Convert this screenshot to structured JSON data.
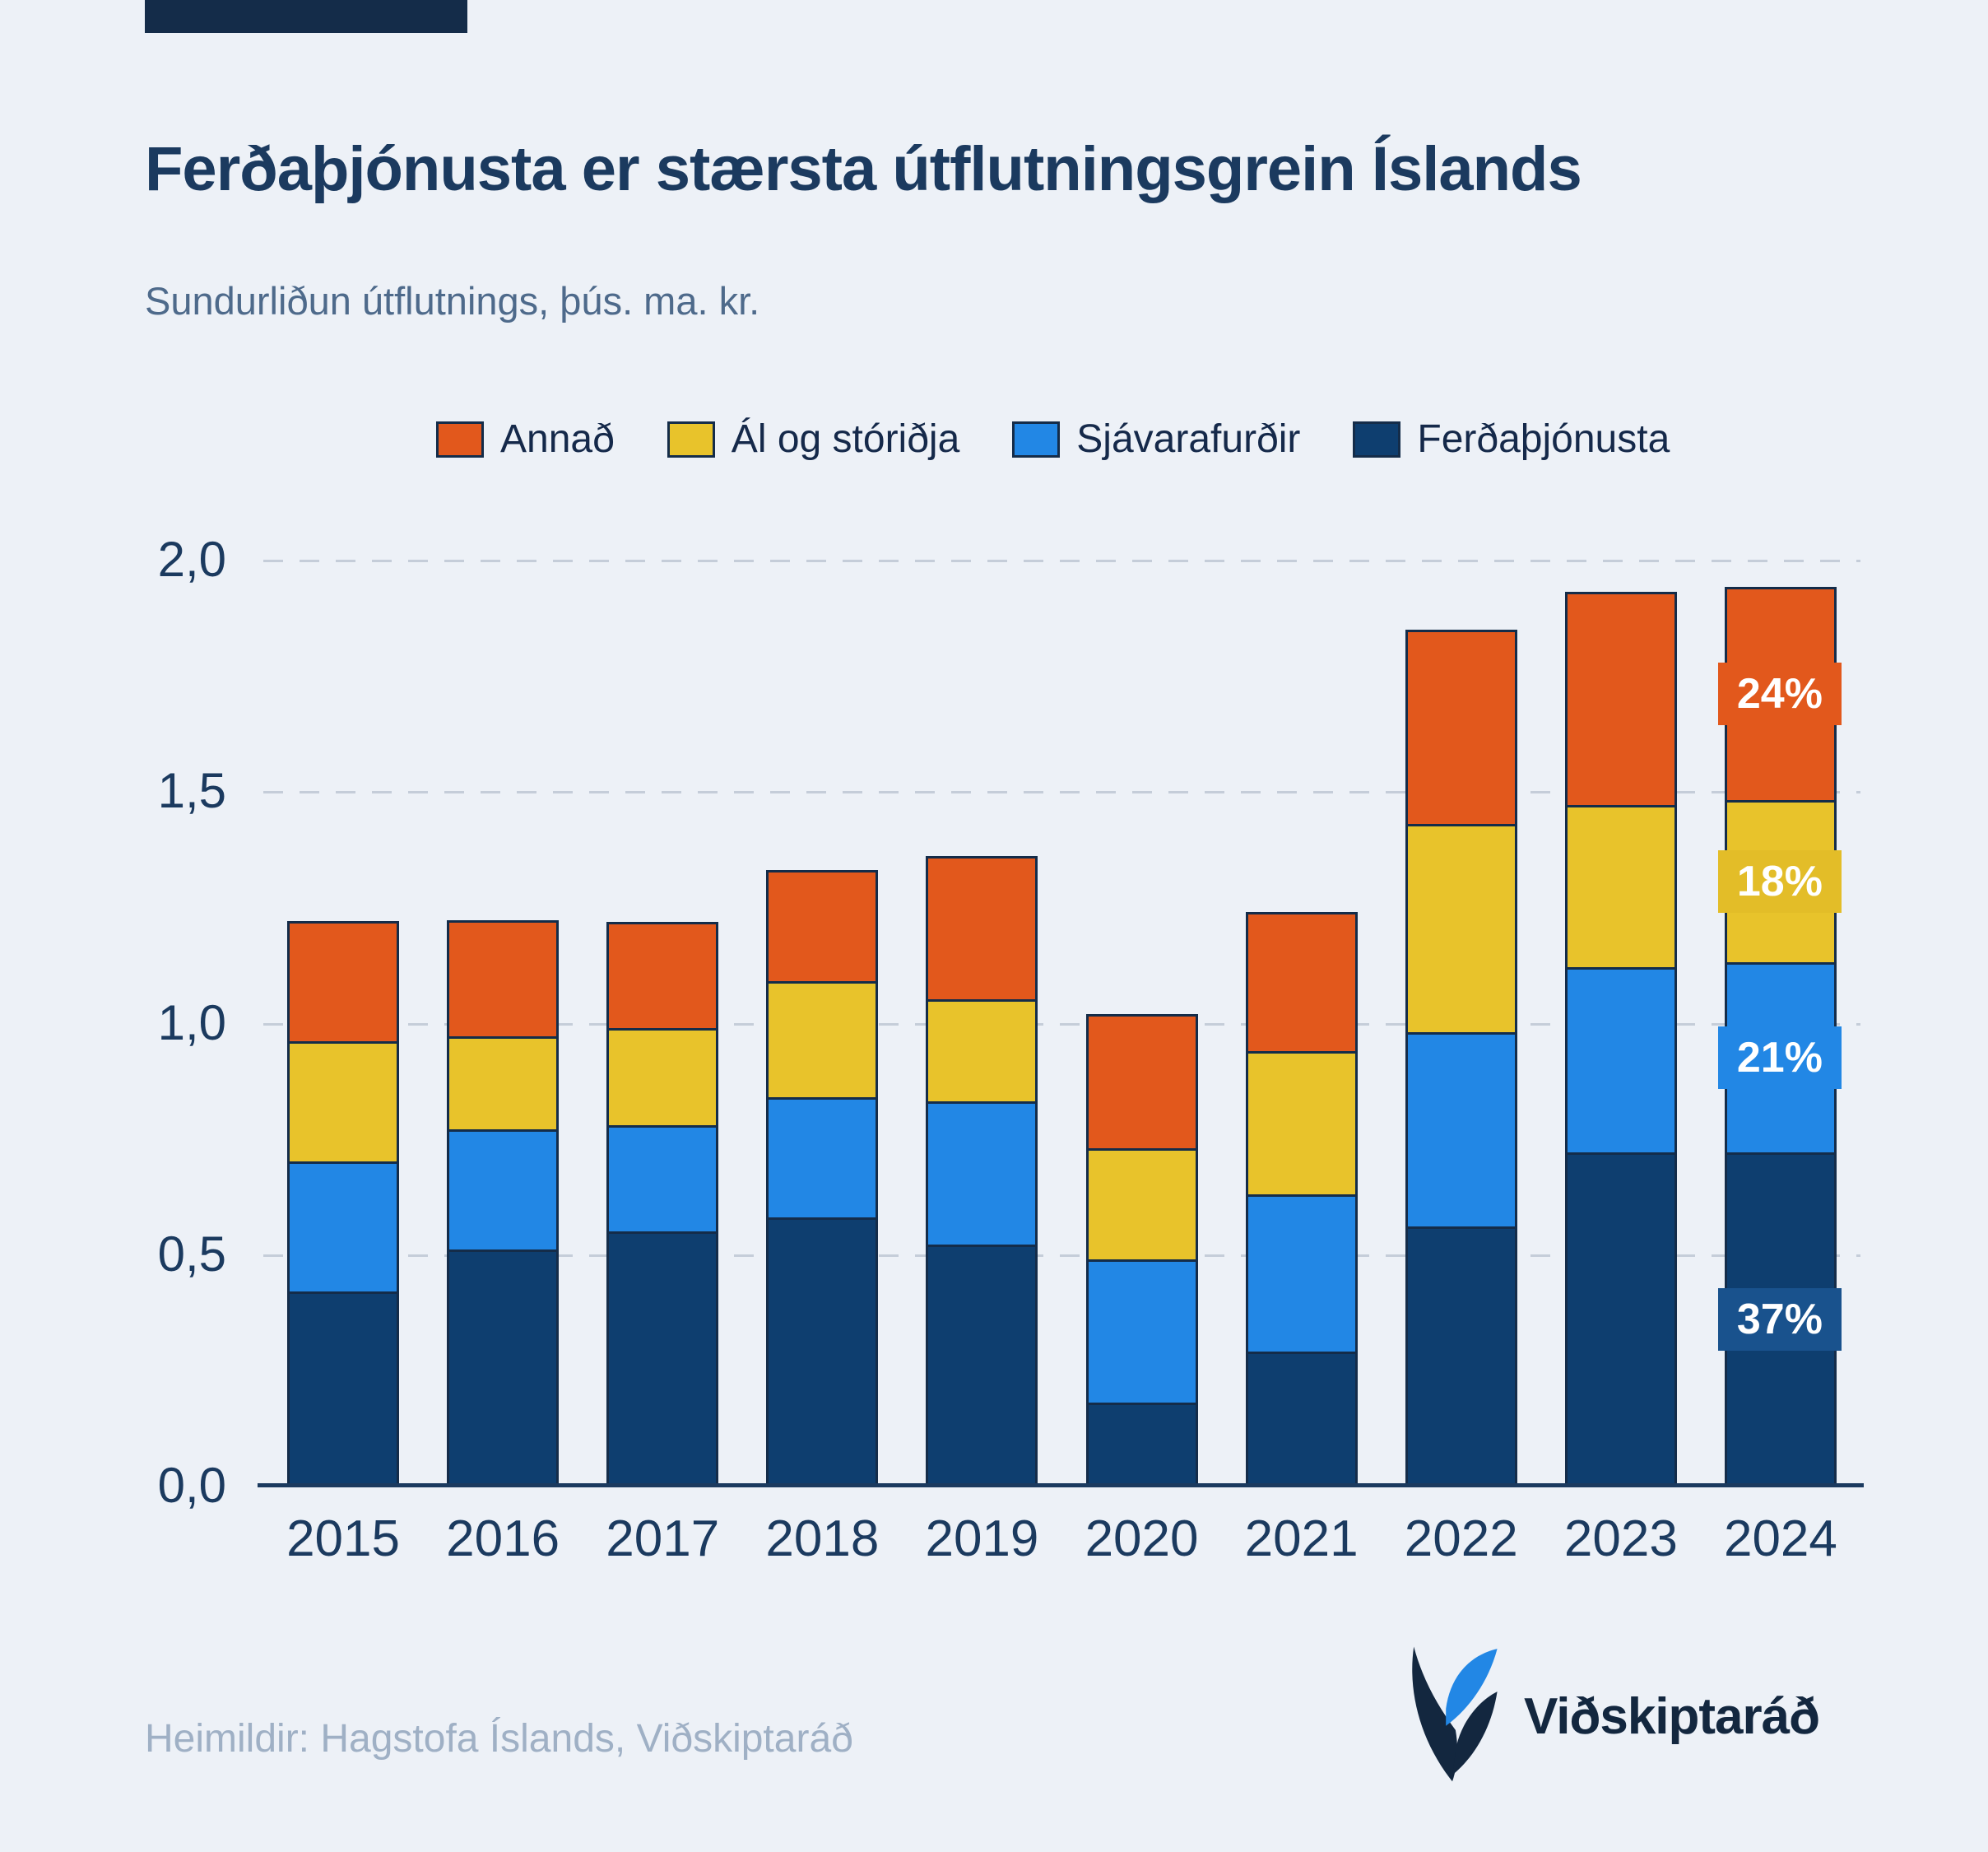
{
  "header": {
    "title": "Ferðaþjónusta er stærsta útflutningsgrein Íslands",
    "subtitle": "Sundurliðun útflutnings, þús. ma. kr."
  },
  "chart_data": {
    "type": "bar",
    "stacked": true,
    "title": "Ferðaþjónusta er stærsta útflutningsgrein Íslands",
    "subtitle": "Sundurliðun útflutnings, þús. ma. kr.",
    "unit": "þús. ma. kr.",
    "categories": [
      "2015",
      "2016",
      "2017",
      "2018",
      "2019",
      "2020",
      "2021",
      "2022",
      "2023",
      "2024"
    ],
    "series": [
      {
        "key": "tourism",
        "name": "Ferðaþjónusta",
        "color": "#0e3e6f",
        "values": [
          0.42,
          0.51,
          0.55,
          0.58,
          0.52,
          0.18,
          0.29,
          0.56,
          0.72,
          0.72
        ]
      },
      {
        "key": "seafood",
        "name": "Sjávarafurðir",
        "color": "#2287e5",
        "values": [
          0.28,
          0.26,
          0.23,
          0.26,
          0.31,
          0.31,
          0.34,
          0.42,
          0.4,
          0.41
        ]
      },
      {
        "key": "aluminum",
        "name": "Ál og stóriðja",
        "color": "#e8c32b",
        "values": [
          0.26,
          0.2,
          0.21,
          0.25,
          0.22,
          0.24,
          0.31,
          0.45,
          0.35,
          0.35
        ]
      },
      {
        "key": "other",
        "name": "Annað",
        "color": "#e2581c",
        "values": [
          0.26,
          0.25,
          0.23,
          0.24,
          0.31,
          0.29,
          0.3,
          0.42,
          0.46,
          0.46
        ]
      }
    ],
    "legend_order": [
      "Annað",
      "Ál og stóriðja",
      "Sjávarafurðir",
      "Ferðaþjónusta"
    ],
    "legend_position": "top",
    "ylim": [
      0,
      2.0
    ],
    "yticks": [
      {
        "label": "0,0",
        "value": 0
      },
      {
        "label": "0,5",
        "value": 0.5
      },
      {
        "label": "1,0",
        "value": 1
      },
      {
        "label": "1,5",
        "value": 1.5
      },
      {
        "label": "2,0",
        "value": 2
      }
    ],
    "grid": "horizontal-dashed",
    "annotations": [
      {
        "series_key": "other",
        "label": "24%",
        "color": "#e2581c"
      },
      {
        "series_key": "aluminum",
        "label": "18%",
        "color": "#e3bd28"
      },
      {
        "series_key": "seafood",
        "label": "21%",
        "color": "#2287e5"
      },
      {
        "series_key": "tourism",
        "label": "37%",
        "color": "#19528d"
      }
    ]
  },
  "footer": {
    "source": "Heimildir: Hagstofa Íslands, Viðskiptaráð",
    "brand": "Viðskiptaráð"
  },
  "colors": {
    "background": "#edf1f7",
    "navy": "#1b3a5f",
    "accent_bar": "#142c49"
  }
}
